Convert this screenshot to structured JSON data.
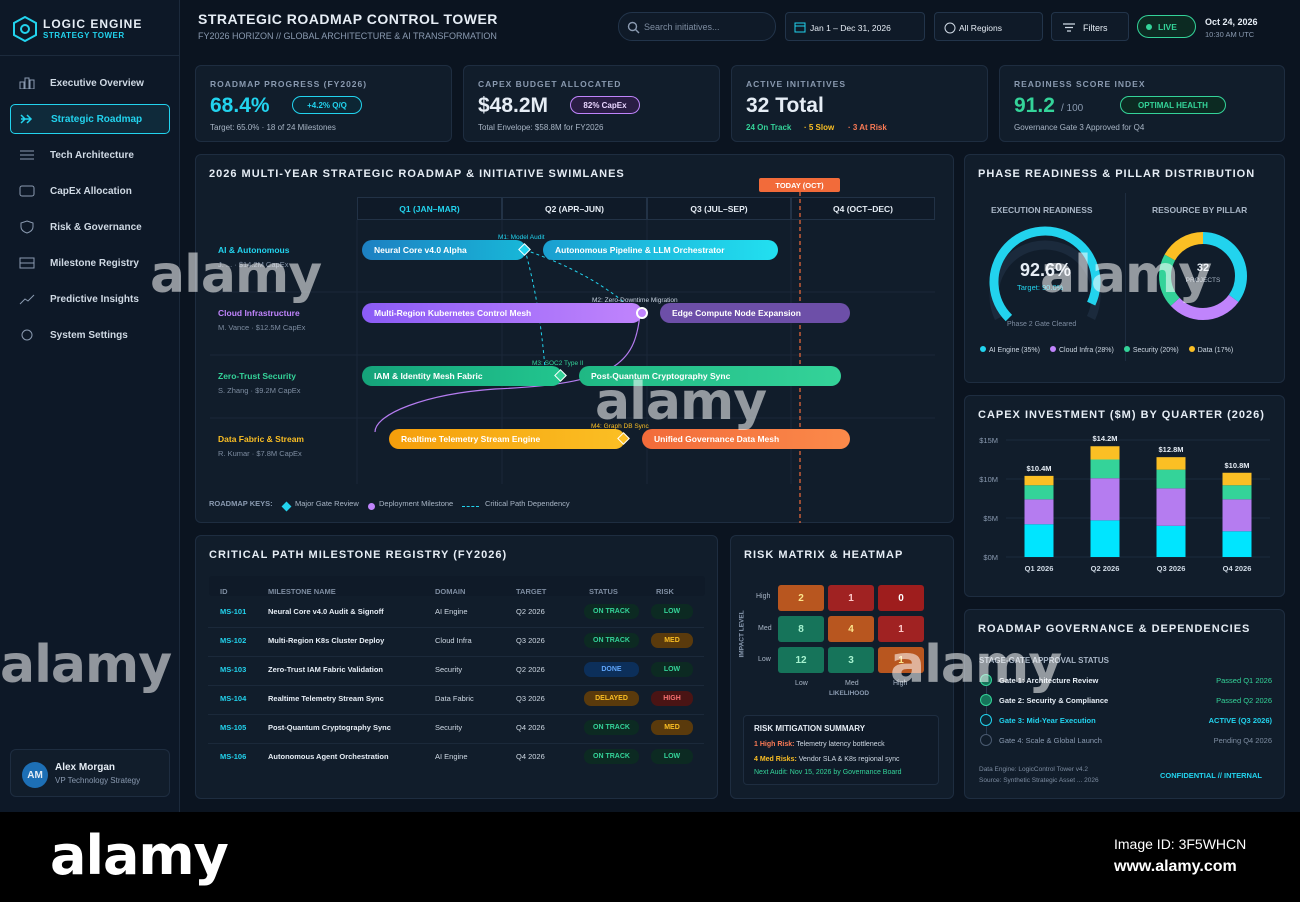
{
  "app": {
    "title": "LOGIC ENGINE",
    "subtitle": "STRATEGY TOWER"
  },
  "nav": [
    {
      "label": "Executive Overview",
      "icon": "bar-chart-icon"
    },
    {
      "label": "Strategic Roadmap",
      "icon": "roadmap-icon",
      "active": true
    },
    {
      "label": "Tech Architecture",
      "icon": "layers-icon"
    },
    {
      "label": "CapEx Allocation",
      "icon": "wallet-icon"
    },
    {
      "label": "Risk & Governance",
      "icon": "shield-icon"
    },
    {
      "label": "Milestone Registry",
      "icon": "registry-icon"
    },
    {
      "label": "Predictive Insights",
      "icon": "trend-icon"
    },
    {
      "label": "System Settings",
      "icon": "gear-icon"
    }
  ],
  "user": {
    "initials": "AM",
    "name": "Alex Morgan",
    "role": "VP Technology Strategy"
  },
  "header": {
    "title": "STRATEGIC ROADMAP CONTROL TOWER",
    "subtitle": "FY2026 HORIZON // GLOBAL ARCHITECTURE & AI TRANSFORMATION",
    "search_placeholder": "Search initiatives...",
    "date_range": "Jan 1 – Dec 31, 2026",
    "region": "All Regions",
    "filters": "Filters",
    "live": "LIVE",
    "date": "Oct 24, 2026",
    "time": "10:30 AM UTC"
  },
  "kpis": [
    {
      "label": "ROADMAP PROGRESS (FY2026)",
      "value": "68.4%",
      "badge": "+4.2% Q/Q",
      "sub": "Target: 65.0% · 18 of 24 Milestones",
      "color": "#22d3ee"
    },
    {
      "label": "CAPEX BUDGET ALLOCATED",
      "value": "$48.2M",
      "badge": "82% CapEx",
      "sub": "Total Envelope: $58.8M for FY2026",
      "color": "#ffffff"
    },
    {
      "label": "ACTIVE INITIATIVES",
      "value": "32 Total",
      "on_track": "24 On Track",
      "slow": "· 5 Slow",
      "at_risk": "· 3 At Risk",
      "color": "#ffffff"
    },
    {
      "label": "READINESS SCORE INDEX",
      "value": "91.2",
      "suffix": "/ 100",
      "badge": "OPTIMAL HEALTH",
      "sub": "Governance Gate 3 Approved for Q4",
      "color": "#34d399"
    }
  ],
  "roadmap": {
    "title": "2026 MULTI-YEAR STRATEGIC ROADMAP & INITIATIVE SWIMLANES",
    "today": "TODAY (OCT)",
    "quarters": [
      "Q1 (JAN–MAR)",
      "Q2 (APR–JUN)",
      "Q3 (JUL–SEP)",
      "Q4 (OCT–DEC)"
    ],
    "lanes": [
      {
        "name": "AI & Autonomous",
        "sub": "J. ... · $14.2M CapEx",
        "color": "#22d3ee"
      },
      {
        "name": "Cloud Infrastructure",
        "sub": "M. Vance · $12.5M CapEx",
        "color": "#c084fc"
      },
      {
        "name": "Zero-Trust Security",
        "sub": "S. Zhang · $9.2M CapEx",
        "color": "#34d399"
      },
      {
        "name": "Data Fabric & Stream",
        "sub": "R. Kumar · $7.8M CapEx",
        "color": "#fbbf24"
      }
    ],
    "bars": [
      "Neural Core v4.0 Alpha",
      "Autonomous Pipeline & LLM Orchestrator",
      "Multi-Region Kubernetes Control Mesh",
      "Edge Compute Node Expansion",
      "IAM & Identity Mesh Fabric",
      "Post-Quantum Cryptography Sync",
      "Realtime Telemetry Stream Engine",
      "Unified Governance Data Mesh"
    ],
    "milestones": [
      "M1: Model Audit",
      "M2: Zero-Downtime Migration",
      "M3: SOC2 Type II",
      "M4: Graph DB Sync"
    ],
    "keys_label": "ROADMAP KEYS:",
    "key_gate": "Major Gate Review",
    "key_deploy": "Deployment Milestone",
    "key_path": "Critical Path Dependency"
  },
  "phase": {
    "title": "PHASE READINESS & PILLAR DISTRIBUTION",
    "exec_label": "EXECUTION READINESS",
    "resource_label": "RESOURCE BY PILLAR",
    "gauge_value": "92.6%",
    "gauge_target": "Target: 90.0%",
    "gauge_fraction": 0.926,
    "gauge_note": "Phase 2 Gate Cleared",
    "donut_value": "32",
    "donut_label": "PROJECTS",
    "legend": [
      {
        "label": "AI Engine (35%)",
        "color": "#22d3ee",
        "pct": 35
      },
      {
        "label": "Cloud Infra (28%)",
        "color": "#c084fc",
        "pct": 28
      },
      {
        "label": "Security (20%)",
        "color": "#34d399",
        "pct": 20
      },
      {
        "label": "Data (17%)",
        "color": "#fbbf24",
        "pct": 17
      }
    ]
  },
  "chart_data": {
    "type": "bar",
    "title": "CAPEX INVESTMENT ($M) BY QUARTER (2026)",
    "categories": [
      "Q1 2026",
      "Q2 2026",
      "Q3 2026",
      "Q4 2026"
    ],
    "totals": [
      "$10.4M",
      "$14.2M",
      "$12.8M",
      "$10.8M"
    ],
    "yticks": [
      "$0M",
      "$5M",
      "$10M",
      "$15M"
    ],
    "ylim": [
      0,
      15
    ],
    "series": [
      {
        "name": "AI Engine",
        "color": "#00e5ff",
        "values": [
          4.2,
          4.7,
          4.0,
          3.3
        ]
      },
      {
        "name": "Cloud Infra",
        "color": "#b57cf0",
        "values": [
          3.2,
          5.4,
          4.8,
          4.1
        ]
      },
      {
        "name": "Security",
        "color": "#34d399",
        "values": [
          1.8,
          2.4,
          2.4,
          1.8
        ]
      },
      {
        "name": "Data",
        "color": "#fbbf24",
        "values": [
          1.2,
          1.7,
          1.6,
          1.6
        ]
      }
    ]
  },
  "registry": {
    "title": "CRITICAL PATH MILESTONE REGISTRY (FY2026)",
    "headers": [
      "ID",
      "MILESTONE NAME",
      "DOMAIN",
      "TARGET",
      "STATUS",
      "RISK"
    ],
    "rows": [
      {
        "id": "MS-101",
        "name": "Neural Core v4.0 Audit & Signoff",
        "domain": "AI Engine",
        "target": "Q2 2026",
        "status": "ON TRACK",
        "risk": "LOW"
      },
      {
        "id": "MS-102",
        "name": "Multi-Region K8s Cluster Deploy",
        "domain": "Cloud Infra",
        "target": "Q3 2026",
        "status": "ON TRACK",
        "risk": "MED"
      },
      {
        "id": "MS-103",
        "name": "Zero-Trust IAM Fabric Validation",
        "domain": "Security",
        "target": "Q2 2026",
        "status": "DONE",
        "risk": "LOW"
      },
      {
        "id": "MS-104",
        "name": "Realtime Telemetry Stream Sync",
        "domain": "Data Fabric",
        "target": "Q3 2026",
        "status": "DELAYED",
        "risk": "HIGH"
      },
      {
        "id": "MS-105",
        "name": "Post-Quantum Cryptography Sync",
        "domain": "Security",
        "target": "Q4 2026",
        "status": "ON TRACK",
        "risk": "MED"
      },
      {
        "id": "MS-106",
        "name": "Autonomous Agent Orchestration",
        "domain": "AI Engine",
        "target": "Q4 2026",
        "status": "ON TRACK",
        "risk": "LOW"
      }
    ]
  },
  "risk": {
    "title": "RISK MATRIX & HEATMAP",
    "y_label": "IMPACT LEVEL",
    "x_label": "LIKELIHOOD",
    "rows": [
      "High",
      "Med",
      "Low"
    ],
    "cols": [
      "Low",
      "Med",
      "High"
    ],
    "cells": [
      [
        "2",
        "1",
        "0"
      ],
      [
        "8",
        "4",
        "1"
      ],
      [
        "12",
        "3",
        "1"
      ]
    ],
    "summary_title": "RISK MITIGATION SUMMARY",
    "high": "1 High Risk:",
    "high_text": "Telemetry latency bottleneck",
    "med": "4 Med Risks:",
    "med_text": "Vendor SLA & K8s regional sync",
    "next": "Next Audit: Nov 15, 2026 by Governance Board"
  },
  "governance": {
    "title": "ROADMAP GOVERNANCE & DEPENDENCIES",
    "subtitle": "STAGE-GATE APPROVAL STATUS",
    "gates": [
      {
        "label": "Gate 1: Architecture Review",
        "status": "Passed Q1 2026"
      },
      {
        "label": "Gate 2: Security & Compliance",
        "status": "Passed Q2 2026"
      },
      {
        "label": "Gate 3: Mid-Year Execution",
        "status": "ACTIVE (Q3 2026)"
      },
      {
        "label": "Gate 4: Scale & Global Launch",
        "status": "Pending Q4 2026"
      }
    ],
    "footer1": "Data Engine: LogicControl Tower v4.2",
    "footer2": "Source: Synthetic Strategic Asset ... 2026",
    "confidential": "CONFIDENTIAL // INTERNAL"
  },
  "watermark": {
    "brand": "alamy",
    "image_id": "Image ID: 3F5WHCN",
    "site": "www.alamy.com"
  }
}
